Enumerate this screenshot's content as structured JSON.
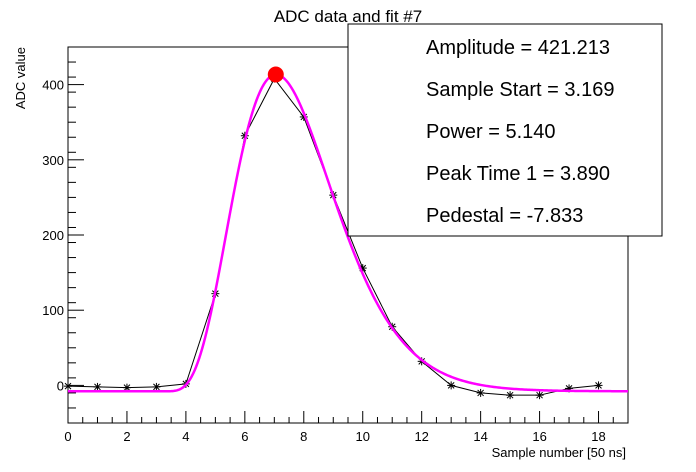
{
  "chart_data": {
    "type": "line",
    "title": "ADC data and fit #7",
    "xlabel": "Sample number [50 ns]",
    "ylabel": "ADC value",
    "xlim": [
      0,
      19
    ],
    "ylim": [
      -50,
      450
    ],
    "x_ticks": [
      0,
      2,
      4,
      6,
      8,
      10,
      12,
      14,
      16,
      18
    ],
    "y_ticks": [
      0,
      100,
      200,
      300,
      400
    ],
    "grid": false,
    "series": [
      {
        "style": "black line with star markers",
        "color": "#000000",
        "x": [
          0,
          1,
          2,
          3,
          4,
          5,
          6,
          7,
          8,
          9,
          10,
          11,
          12,
          13,
          14,
          15,
          16,
          17,
          18
        ],
        "y": [
          -1,
          -2,
          -3,
          -2,
          2,
          122,
          332,
          408,
          357,
          253,
          156,
          78,
          32,
          0,
          -10,
          -13,
          -13,
          -4,
          0
        ]
      },
      {
        "style": "magenta fit curve",
        "color": "#ff00ff",
        "model": {
          "amplitude": 421.213,
          "sample_start": 3.169,
          "power": 5.14,
          "peak_time": 3.89,
          "pedestal": -7.833
        }
      }
    ],
    "peak_marker": {
      "x": 7.05,
      "y": 413.4,
      "color": "#ff0000"
    },
    "stats_box": {
      "lines": [
        "Amplitude = 421.213",
        "Sample Start = 3.169",
        "Power = 5.140",
        "Peak Time 1 = 3.890",
        "Pedestal = -7.833"
      ],
      "placement": "top-right"
    }
  }
}
